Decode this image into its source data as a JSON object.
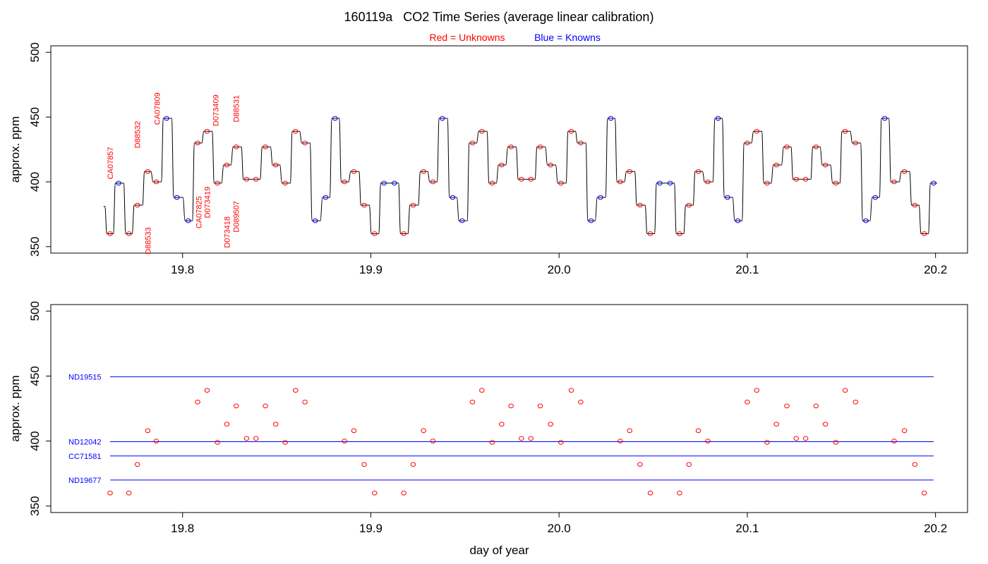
{
  "title": "160119a   CO2 Time Series (average linear calibration)",
  "legend": {
    "red_label": "Red = Unknowns",
    "blue_label": "Blue = Knowns",
    "colors": {
      "unknown": "#ff0000",
      "known": "#0000ff",
      "line": "#000000"
    }
  },
  "chart_data": [
    {
      "type": "line",
      "name": "raw-time-series",
      "ylabel": "approx. ppm",
      "xlabel": "",
      "xlim": [
        19.73,
        20.217
      ],
      "ylim": [
        345,
        505
      ],
      "x_ticks": [
        19.8,
        19.9,
        20.0,
        20.1,
        20.2
      ],
      "x_tick_labels": [
        "19.8",
        "19.9",
        "20.0",
        "20.1",
        "20.2"
      ],
      "y_ticks": [
        350,
        400,
        450,
        500
      ],
      "y_tick_labels": [
        "350",
        "400",
        "450",
        "500"
      ],
      "line_start": [
        19.758,
        381
      ],
      "samples": [
        {
          "x": 19.7615,
          "y": 360,
          "k": "u"
        },
        {
          "x": 19.766,
          "y": 399,
          "k": "k"
        },
        {
          "x": 19.7715,
          "y": 360,
          "k": "u"
        },
        {
          "x": 19.776,
          "y": 382,
          "k": "u"
        },
        {
          "x": 19.7815,
          "y": 408,
          "k": "u"
        },
        {
          "x": 19.786,
          "y": 400,
          "k": "u"
        },
        {
          "x": 19.7915,
          "y": 449,
          "k": "k"
        },
        {
          "x": 19.797,
          "y": 388,
          "k": "k"
        },
        {
          "x": 19.803,
          "y": 370,
          "k": "k"
        },
        {
          "x": 19.808,
          "y": 430,
          "k": "u"
        },
        {
          "x": 19.813,
          "y": 439,
          "k": "u"
        },
        {
          "x": 19.8185,
          "y": 399,
          "k": "u"
        },
        {
          "x": 19.8235,
          "y": 413,
          "k": "u"
        },
        {
          "x": 19.8285,
          "y": 427,
          "k": "u"
        },
        {
          "x": 19.834,
          "y": 402,
          "k": "u"
        },
        {
          "x": 19.839,
          "y": 402,
          "k": "u"
        },
        {
          "x": 19.844,
          "y": 427,
          "k": "u"
        },
        {
          "x": 19.8495,
          "y": 413,
          "k": "u"
        },
        {
          "x": 19.8545,
          "y": 399,
          "k": "u"
        },
        {
          "x": 19.86,
          "y": 439,
          "k": "u"
        },
        {
          "x": 19.865,
          "y": 430,
          "k": "u"
        },
        {
          "x": 19.8705,
          "y": 370,
          "k": "k"
        },
        {
          "x": 19.876,
          "y": 388,
          "k": "k"
        },
        {
          "x": 19.881,
          "y": 449,
          "k": "k"
        },
        {
          "x": 19.886,
          "y": 400,
          "k": "u"
        },
        {
          "x": 19.891,
          "y": 408,
          "k": "u"
        },
        {
          "x": 19.8965,
          "y": 382,
          "k": "u"
        },
        {
          "x": 19.902,
          "y": 360,
          "k": "u"
        },
        {
          "x": 19.907,
          "y": 399,
          "k": "k"
        },
        {
          "x": 19.9125,
          "y": 399,
          "k": "k"
        },
        {
          "x": 19.9175,
          "y": 360,
          "k": "u"
        },
        {
          "x": 19.9225,
          "y": 382,
          "k": "u"
        },
        {
          "x": 19.928,
          "y": 408,
          "k": "u"
        },
        {
          "x": 19.933,
          "y": 400,
          "k": "u"
        },
        {
          "x": 19.938,
          "y": 449,
          "k": "k"
        },
        {
          "x": 19.9435,
          "y": 388,
          "k": "k"
        },
        {
          "x": 19.9485,
          "y": 370,
          "k": "k"
        },
        {
          "x": 19.954,
          "y": 430,
          "k": "u"
        },
        {
          "x": 19.959,
          "y": 439,
          "k": "u"
        },
        {
          "x": 19.9645,
          "y": 399,
          "k": "u"
        },
        {
          "x": 19.9695,
          "y": 413,
          "k": "u"
        },
        {
          "x": 19.9745,
          "y": 427,
          "k": "u"
        },
        {
          "x": 19.98,
          "y": 402,
          "k": "u"
        },
        {
          "x": 19.985,
          "y": 402,
          "k": "u"
        },
        {
          "x": 19.99,
          "y": 427,
          "k": "u"
        },
        {
          "x": 19.9955,
          "y": 413,
          "k": "u"
        },
        {
          "x": 20.001,
          "y": 399,
          "k": "u"
        },
        {
          "x": 20.0065,
          "y": 439,
          "k": "u"
        },
        {
          "x": 20.0115,
          "y": 430,
          "k": "u"
        },
        {
          "x": 20.017,
          "y": 370,
          "k": "k"
        },
        {
          "x": 20.022,
          "y": 388,
          "k": "k"
        },
        {
          "x": 20.0275,
          "y": 449,
          "k": "k"
        },
        {
          "x": 20.0325,
          "y": 400,
          "k": "u"
        },
        {
          "x": 20.0375,
          "y": 408,
          "k": "u"
        },
        {
          "x": 20.043,
          "y": 382,
          "k": "u"
        },
        {
          "x": 20.0485,
          "y": 360,
          "k": "u"
        },
        {
          "x": 20.0535,
          "y": 399,
          "k": "k"
        },
        {
          "x": 20.059,
          "y": 399,
          "k": "k"
        },
        {
          "x": 20.064,
          "y": 360,
          "k": "u"
        },
        {
          "x": 20.069,
          "y": 382,
          "k": "u"
        },
        {
          "x": 20.074,
          "y": 408,
          "k": "u"
        },
        {
          "x": 20.079,
          "y": 400,
          "k": "u"
        },
        {
          "x": 20.0845,
          "y": 449,
          "k": "k"
        },
        {
          "x": 20.0895,
          "y": 388,
          "k": "k"
        },
        {
          "x": 20.095,
          "y": 370,
          "k": "k"
        },
        {
          "x": 20.1,
          "y": 430,
          "k": "u"
        },
        {
          "x": 20.105,
          "y": 439,
          "k": "u"
        },
        {
          "x": 20.1105,
          "y": 399,
          "k": "u"
        },
        {
          "x": 20.1155,
          "y": 413,
          "k": "u"
        },
        {
          "x": 20.121,
          "y": 427,
          "k": "u"
        },
        {
          "x": 20.126,
          "y": 402,
          "k": "u"
        },
        {
          "x": 20.131,
          "y": 402,
          "k": "u"
        },
        {
          "x": 20.1365,
          "y": 427,
          "k": "u"
        },
        {
          "x": 20.1415,
          "y": 413,
          "k": "u"
        },
        {
          "x": 20.147,
          "y": 399,
          "k": "u"
        },
        {
          "x": 20.152,
          "y": 439,
          "k": "u"
        },
        {
          "x": 20.1575,
          "y": 430,
          "k": "u"
        },
        {
          "x": 20.163,
          "y": 370,
          "k": "k"
        },
        {
          "x": 20.168,
          "y": 388,
          "k": "k"
        },
        {
          "x": 20.173,
          "y": 449,
          "k": "k"
        },
        {
          "x": 20.178,
          "y": 400,
          "k": "u"
        },
        {
          "x": 20.1835,
          "y": 408,
          "k": "u"
        },
        {
          "x": 20.189,
          "y": 382,
          "k": "u"
        },
        {
          "x": 20.194,
          "y": 360,
          "k": "u"
        },
        {
          "x": 20.199,
          "y": 399,
          "k": "k"
        }
      ],
      "annotations": [
        {
          "text": "CA07857",
          "x": 19.7615,
          "y": 402,
          "anchor": "start"
        },
        {
          "text": "D88532",
          "x": 19.776,
          "y": 426,
          "anchor": "start"
        },
        {
          "text": "CA07809",
          "x": 19.7865,
          "y": 444,
          "anchor": "start"
        },
        {
          "text": "D073409",
          "x": 19.8175,
          "y": 443,
          "anchor": "start"
        },
        {
          "text": "D88531",
          "x": 19.8285,
          "y": 446,
          "anchor": "start"
        },
        {
          "text": "D88533",
          "x": 19.7815,
          "y": 344,
          "anchor": "start"
        },
        {
          "text": "CA07825",
          "x": 19.8085,
          "y": 364,
          "anchor": "start"
        },
        {
          "text": "D073419",
          "x": 19.813,
          "y": 372,
          "anchor": "start"
        },
        {
          "text": "D073418",
          "x": 19.8235,
          "y": 349,
          "anchor": "start"
        },
        {
          "text": "D089507",
          "x": 19.8285,
          "y": 361,
          "anchor": "start"
        }
      ]
    },
    {
      "type": "scatter",
      "name": "unknowns-vs-references",
      "ylabel": "approx. ppm",
      "xlabel": "day of year",
      "xlim": [
        19.73,
        20.217
      ],
      "ylim": [
        345,
        505
      ],
      "x_ticks": [
        19.8,
        19.9,
        20.0,
        20.1,
        20.2
      ],
      "x_tick_labels": [
        "19.8",
        "19.9",
        "20.0",
        "20.1",
        "20.2"
      ],
      "y_ticks": [
        350,
        400,
        450,
        500
      ],
      "y_tick_labels": [
        "350",
        "400",
        "450",
        "500"
      ],
      "reference_lines": [
        {
          "name": "ND19515",
          "value": 449.5,
          "x_start": 19.7615,
          "x_end": 20.199
        },
        {
          "name": "ND12042",
          "value": 399.5,
          "x_start": 19.7615,
          "x_end": 20.199
        },
        {
          "name": "CC71581",
          "value": 388.5,
          "x_start": 19.7615,
          "x_end": 20.199
        },
        {
          "name": "ND19677",
          "value": 370,
          "x_start": 19.7615,
          "x_end": 20.199
        }
      ],
      "unknowns": [
        [
          19.7615,
          360
        ],
        [
          19.7715,
          360
        ],
        [
          19.776,
          382
        ],
        [
          19.7815,
          408
        ],
        [
          19.786,
          400
        ],
        [
          19.808,
          430
        ],
        [
          19.813,
          439
        ],
        [
          19.8185,
          399
        ],
        [
          19.8235,
          413
        ],
        [
          19.8285,
          427
        ],
        [
          19.834,
          402
        ],
        [
          19.839,
          402
        ],
        [
          19.844,
          427
        ],
        [
          19.8495,
          413
        ],
        [
          19.8545,
          399
        ],
        [
          19.86,
          439
        ],
        [
          19.865,
          430
        ],
        [
          19.886,
          400
        ],
        [
          19.891,
          408
        ],
        [
          19.8965,
          382
        ],
        [
          19.902,
          360
        ],
        [
          19.9175,
          360
        ],
        [
          19.9225,
          382
        ],
        [
          19.928,
          408
        ],
        [
          19.933,
          400
        ],
        [
          19.954,
          430
        ],
        [
          19.959,
          439
        ],
        [
          19.9645,
          399
        ],
        [
          19.9695,
          413
        ],
        [
          19.9745,
          427
        ],
        [
          19.98,
          402
        ],
        [
          19.985,
          402
        ],
        [
          19.99,
          427
        ],
        [
          19.9955,
          413
        ],
        [
          20.001,
          399
        ],
        [
          20.0065,
          439
        ],
        [
          20.0115,
          430
        ],
        [
          20.0325,
          400
        ],
        [
          20.0375,
          408
        ],
        [
          20.043,
          382
        ],
        [
          20.0485,
          360
        ],
        [
          20.064,
          360
        ],
        [
          20.069,
          382
        ],
        [
          20.074,
          408
        ],
        [
          20.079,
          400
        ],
        [
          20.1,
          430
        ],
        [
          20.105,
          439
        ],
        [
          20.1105,
          399
        ],
        [
          20.1155,
          413
        ],
        [
          20.121,
          427
        ],
        [
          20.126,
          402
        ],
        [
          20.131,
          402
        ],
        [
          20.1365,
          427
        ],
        [
          20.1415,
          413
        ],
        [
          20.147,
          399
        ],
        [
          20.152,
          439
        ],
        [
          20.1575,
          430
        ],
        [
          20.178,
          400
        ],
        [
          20.1835,
          408
        ],
        [
          20.189,
          382
        ],
        [
          20.194,
          360
        ]
      ]
    }
  ]
}
